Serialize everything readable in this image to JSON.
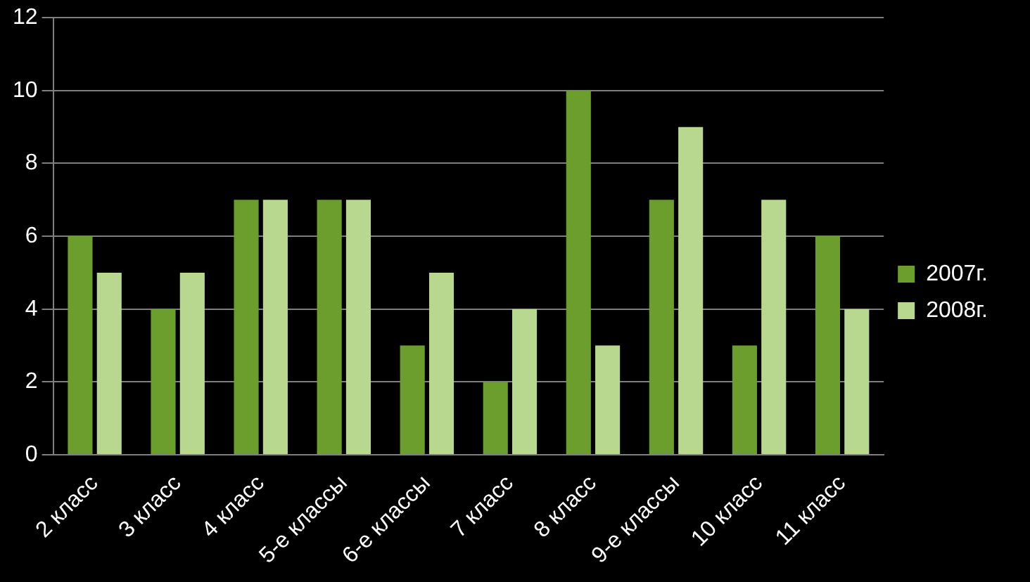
{
  "chart_data": {
    "type": "bar",
    "categories": [
      "2 класс",
      "3 класс",
      "4 класс",
      "5-е классы",
      "6-е классы",
      "7 класс",
      "8 класс",
      "9-е классы",
      "10 класс",
      "11 класс"
    ],
    "series": [
      {
        "name": "2007г.",
        "color": "#6b9e2c",
        "values": [
          6,
          4,
          7,
          7,
          3,
          2,
          10,
          7,
          3,
          6
        ]
      },
      {
        "name": "2008г.",
        "color": "#b8d890",
        "values": [
          5,
          5,
          7,
          7,
          5,
          4,
          3,
          9,
          7,
          4
        ]
      }
    ],
    "ylim": [
      0,
      12
    ],
    "yticks": [
      0,
      2,
      4,
      6,
      8,
      10,
      12
    ],
    "grid": "y",
    "legend": "right"
  }
}
